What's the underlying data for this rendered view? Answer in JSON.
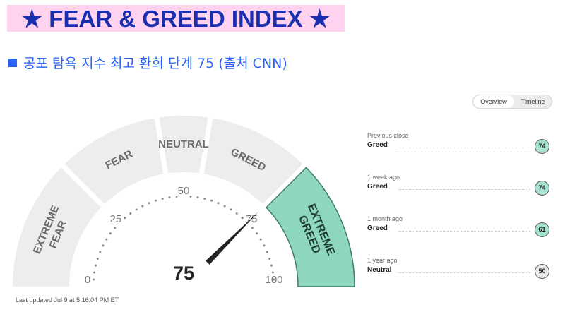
{
  "banner": {
    "title": "★ FEAR & GREED INDEX ★"
  },
  "subtitle": {
    "text": "공포 탐욕 지수 최고 환희 단계 75 (출처 CNN)"
  },
  "toggle": {
    "overview": "Overview",
    "timeline": "Timeline"
  },
  "gauge": {
    "value": "75",
    "value_num": 75,
    "min": 0,
    "max": 100,
    "ticks": [
      "0",
      "25",
      "50",
      "75",
      "100"
    ],
    "zones": [
      {
        "label": [
          "EXTREME",
          "FEAR"
        ],
        "from": 0,
        "to": 25,
        "active": false
      },
      {
        "label": [
          "FEAR"
        ],
        "from": 25,
        "to": 45,
        "active": false
      },
      {
        "label": [
          "NEUTRAL"
        ],
        "from": 45,
        "to": 55,
        "active": false
      },
      {
        "label": [
          "GREED"
        ],
        "from": 55,
        "to": 75,
        "active": false
      },
      {
        "label": [
          "EXTREME",
          "GREED"
        ],
        "from": 75,
        "to": 100,
        "active": true
      }
    ],
    "colors": {
      "zone": "#ededed",
      "active": "#8ed6c0",
      "active_border": "#3f7d67",
      "active_text": "#1e3d33",
      "zone_text": "#6a6a6a",
      "needle": "#222222"
    }
  },
  "updated": "Last updated Jul 9 at 5:16:04 PM ET",
  "history": [
    {
      "label": "Previous close",
      "value": "Greed",
      "score": "74",
      "kind": "g"
    },
    {
      "label": "1 week ago",
      "value": "Greed",
      "score": "74",
      "kind": "g"
    },
    {
      "label": "1 month ago",
      "value": "Greed",
      "score": "61",
      "kind": "g"
    },
    {
      "label": "1 year ago",
      "value": "Neutral",
      "score": "50",
      "kind": "n"
    }
  ]
}
